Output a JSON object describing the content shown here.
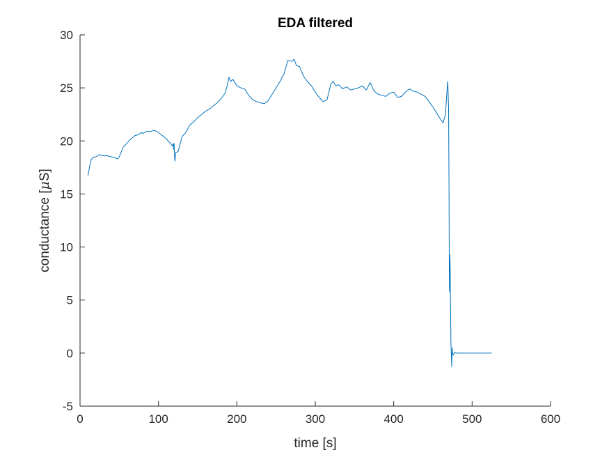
{
  "chart_data": {
    "type": "line",
    "title": "EDA filtered",
    "xlabel": "time [s]",
    "ylabel_prefix": "conductance [",
    "ylabel_mu": "μ",
    "ylabel_suffix": "S]",
    "xlim": [
      0,
      600
    ],
    "ylim": [
      -5,
      30
    ],
    "xticks": [
      0,
      100,
      200,
      300,
      400,
      500,
      600
    ],
    "yticks": [
      -5,
      0,
      5,
      10,
      15,
      20,
      25,
      30
    ],
    "grid": false,
    "legend": "none",
    "line_color": "#0072BD",
    "series": [
      {
        "x": [
          10,
          12,
          14,
          16,
          20,
          25,
          30,
          35,
          40,
          45,
          48,
          50,
          55,
          60,
          65,
          70,
          75,
          78,
          80,
          85,
          90,
          95,
          100,
          105,
          110,
          115,
          118,
          119,
          119.5,
          120,
          120.5,
          121,
          122,
          125,
          128,
          130,
          135,
          140,
          145,
          150,
          155,
          160,
          165,
          170,
          175,
          180,
          185,
          188,
          190,
          192,
          195,
          200,
          205,
          210,
          215,
          220,
          225,
          230,
          235,
          240,
          245,
          250,
          255,
          260,
          262,
          265,
          270,
          273,
          276,
          280,
          285,
          290,
          295,
          300,
          305,
          310,
          315,
          318,
          320,
          323,
          326,
          330,
          335,
          340,
          345,
          350,
          355,
          360,
          365,
          370,
          375,
          380,
          385,
          390,
          395,
          400,
          405,
          410,
          415,
          420,
          425,
          430,
          435,
          440,
          445,
          450,
          455,
          460,
          463,
          466,
          468,
          469,
          470,
          470.5,
          471,
          471.5,
          472,
          472.5,
          473,
          473.5,
          474,
          474.5,
          475,
          476,
          478,
          480,
          490,
          500,
          510,
          520,
          525
        ],
        "y": [
          16.7,
          17.5,
          18.2,
          18.4,
          18.5,
          18.7,
          18.6,
          18.6,
          18.5,
          18.4,
          18.3,
          18.5,
          19.4,
          19.8,
          20.2,
          20.5,
          20.6,
          20.8,
          20.7,
          20.9,
          20.9,
          21.0,
          20.8,
          20.5,
          20.2,
          19.8,
          19.5,
          19.8,
          19.2,
          19.7,
          18.5,
          18.1,
          18.9,
          19.0,
          19.8,
          20.4,
          20.8,
          21.5,
          21.8,
          22.2,
          22.5,
          22.8,
          23.0,
          23.3,
          23.6,
          24.0,
          24.5,
          25.3,
          26.0,
          25.6,
          25.8,
          25.2,
          25.0,
          24.9,
          24.3,
          23.9,
          23.7,
          23.6,
          23.5,
          23.8,
          24.4,
          25.0,
          25.6,
          26.3,
          26.8,
          27.6,
          27.5,
          27.7,
          27.1,
          27.0,
          26.1,
          25.6,
          25.2,
          24.6,
          24.1,
          23.7,
          23.9,
          24.8,
          25.4,
          25.6,
          25.2,
          25.3,
          24.9,
          25.1,
          24.8,
          24.9,
          25.0,
          25.2,
          24.8,
          25.5,
          24.7,
          24.4,
          24.3,
          24.2,
          24.5,
          24.6,
          24.1,
          24.2,
          24.6,
          24.9,
          24.7,
          24.6,
          24.4,
          24.2,
          23.7,
          23.2,
          22.6,
          22.0,
          21.7,
          22.5,
          24.8,
          25.6,
          23.0,
          16.0,
          5.8,
          9.3,
          8.1,
          4.0,
          1.0,
          -0.3,
          -1.3,
          0.5,
          0.0,
          -0.2,
          0.1,
          0.0,
          0.0,
          0.0,
          0.0,
          0.0,
          0.0
        ]
      }
    ]
  }
}
